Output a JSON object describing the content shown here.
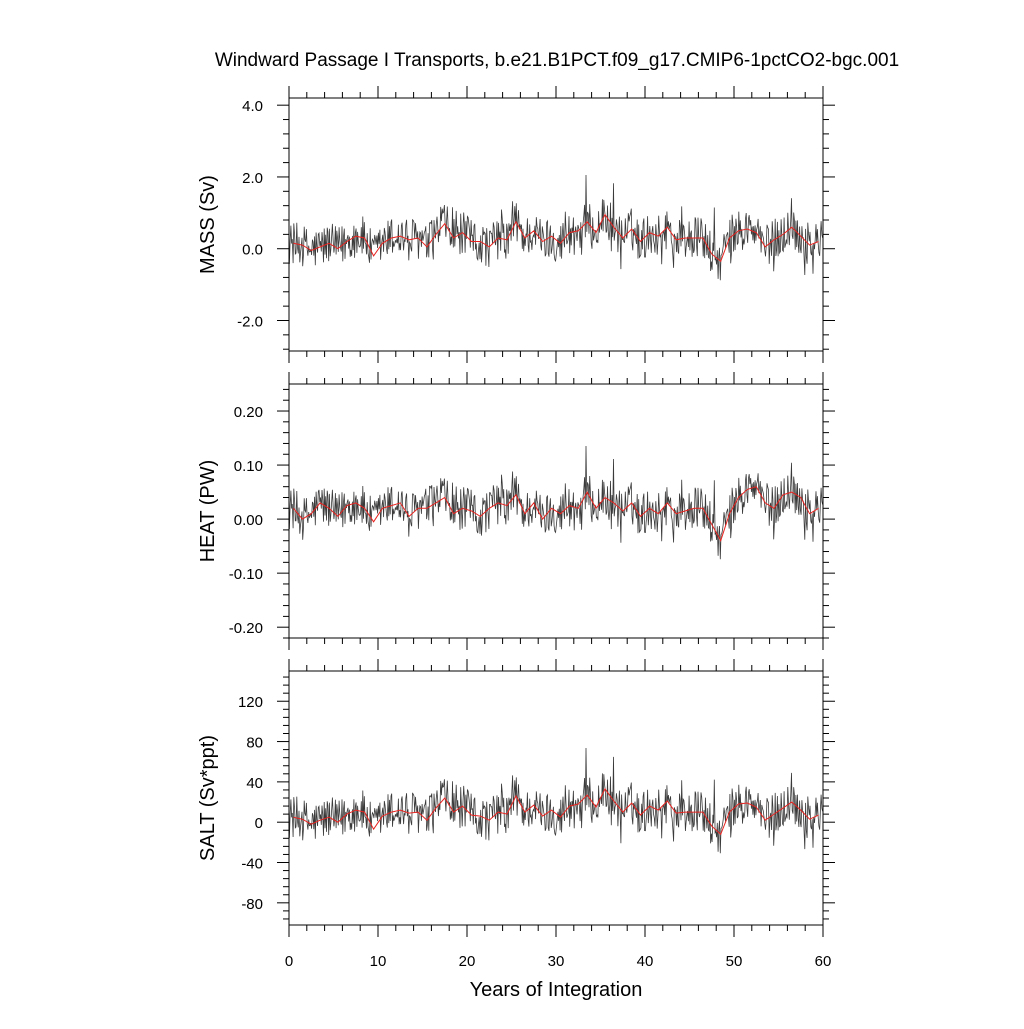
{
  "chart_data": {
    "type": "line",
    "title": "Windward Passage I Transports, b.e21.B1PCT.f09_g17.CMIP6-1pctCO2-bgc.001",
    "xlabel": "Years of Integration",
    "xlim": [
      0,
      60
    ],
    "x_ticks": [
      0,
      10,
      20,
      30,
      40,
      50,
      60
    ],
    "x_tick_labels": [
      "0",
      "10",
      "20",
      "30",
      "40",
      "50",
      "60"
    ],
    "raw_color": "#3a3a3a",
    "smooth_color": "#e8231f",
    "panels": [
      {
        "ylabel": "MASS (Sv)",
        "ylim": [
          -2.85,
          4.2
        ],
        "y_ticks": [
          -2.0,
          0.0,
          2.0,
          4.0
        ],
        "y_tick_labels": [
          "-2.0",
          "0.0",
          "2.0",
          "4.0"
        ],
        "annual_mean": {
          "x": [
            0.5,
            1.5,
            2.5,
            3.5,
            4.5,
            5.5,
            6.5,
            7.5,
            8.5,
            9.5,
            10.5,
            11.5,
            12.5,
            13.5,
            14.5,
            15.5,
            16.5,
            17.5,
            18.5,
            19.5,
            20.5,
            21.5,
            22.5,
            23.5,
            24.5,
            25.5,
            26.5,
            27.5,
            28.5,
            29.5,
            30.5,
            31.5,
            32.5,
            33.5,
            34.5,
            35.5,
            36.5,
            37.5,
            38.5,
            39.5,
            40.5,
            41.5,
            42.5,
            43.5,
            44.5,
            45.5,
            46.5,
            47.5,
            48.5,
            49.5,
            50.5,
            51.5,
            52.5,
            53.5,
            54.5,
            55.5,
            56.5,
            57.5,
            58.5,
            59.5
          ],
          "y": [
            0.15,
            0.1,
            -0.05,
            0.05,
            0.15,
            0.0,
            0.2,
            0.35,
            0.3,
            -0.2,
            0.15,
            0.3,
            0.35,
            0.25,
            0.3,
            0.05,
            0.4,
            0.7,
            0.3,
            0.45,
            0.2,
            0.2,
            0.05,
            0.3,
            0.25,
            0.75,
            0.3,
            0.5,
            0.2,
            0.35,
            0.15,
            0.45,
            0.5,
            0.75,
            0.45,
            0.95,
            0.6,
            0.3,
            0.55,
            0.2,
            0.45,
            0.35,
            0.6,
            0.25,
            0.3,
            0.3,
            0.3,
            -0.15,
            -0.35,
            0.3,
            0.5,
            0.55,
            0.45,
            0.05,
            0.25,
            0.4,
            0.6,
            0.35,
            0.1,
            0.2
          ]
        }
      },
      {
        "ylabel": "HEAT (PW)",
        "ylim": [
          -0.22,
          0.25
        ],
        "y_ticks": [
          -0.2,
          -0.1,
          0.0,
          0.1,
          0.2
        ],
        "y_tick_labels": [
          "-0.20",
          "-0.10",
          "0.00",
          "0.10",
          "0.20"
        ],
        "annual_mean": {
          "x": [
            0.5,
            1.5,
            2.5,
            3.5,
            4.5,
            5.5,
            6.5,
            7.5,
            8.5,
            9.5,
            10.5,
            11.5,
            12.5,
            13.5,
            14.5,
            15.5,
            16.5,
            17.5,
            18.5,
            19.5,
            20.5,
            21.5,
            22.5,
            23.5,
            24.5,
            25.5,
            26.5,
            27.5,
            28.5,
            29.5,
            30.5,
            31.5,
            32.5,
            33.5,
            34.5,
            35.5,
            36.5,
            37.5,
            38.5,
            39.5,
            40.5,
            41.5,
            42.5,
            43.5,
            44.5,
            45.5,
            46.5,
            47.5,
            48.5,
            49.5,
            50.5,
            51.5,
            52.5,
            53.5,
            54.5,
            55.5,
            56.5,
            57.5,
            58.5,
            59.5
          ],
          "y": [
            0.02,
            0.0,
            0.01,
            0.03,
            0.02,
            0.005,
            0.025,
            0.03,
            0.02,
            -0.005,
            0.02,
            0.025,
            0.03,
            0.005,
            0.02,
            0.02,
            0.03,
            0.04,
            0.01,
            0.02,
            0.015,
            0.005,
            0.02,
            0.03,
            0.025,
            0.045,
            0.01,
            0.03,
            0.0,
            0.02,
            0.01,
            0.025,
            0.02,
            0.05,
            0.02,
            0.04,
            0.03,
            0.015,
            0.03,
            0.005,
            0.02,
            0.01,
            0.03,
            0.01,
            0.015,
            0.02,
            0.02,
            -0.01,
            -0.04,
            0.01,
            0.04,
            0.055,
            0.06,
            0.03,
            0.02,
            0.045,
            0.05,
            0.04,
            0.01,
            0.02
          ]
        }
      },
      {
        "ylabel": "SALT (Sv*ppt)",
        "ylim": [
          -102,
          150
        ],
        "y_ticks": [
          -80,
          -40,
          0,
          40,
          80,
          120
        ],
        "y_tick_labels": [
          "-80",
          "-40",
          "0",
          "40",
          "80",
          "120"
        ],
        "annual_mean": {
          "x": [
            0.5,
            1.5,
            2.5,
            3.5,
            4.5,
            5.5,
            6.5,
            7.5,
            8.5,
            9.5,
            10.5,
            11.5,
            12.5,
            13.5,
            14.5,
            15.5,
            16.5,
            17.5,
            18.5,
            19.5,
            20.5,
            21.5,
            22.5,
            23.5,
            24.5,
            25.5,
            26.5,
            27.5,
            28.5,
            29.5,
            30.5,
            31.5,
            32.5,
            33.5,
            34.5,
            35.5,
            36.5,
            37.5,
            38.5,
            39.5,
            40.5,
            41.5,
            42.5,
            43.5,
            44.5,
            45.5,
            46.5,
            47.5,
            48.5,
            49.5,
            50.5,
            51.5,
            52.5,
            53.5,
            54.5,
            55.5,
            56.5,
            57.5,
            58.5,
            59.5
          ],
          "y": [
            5,
            3,
            -2,
            2,
            5,
            0,
            8,
            12,
            10,
            -7,
            6,
            10,
            12,
            9,
            10,
            2,
            14,
            24,
            10,
            16,
            7,
            6,
            2,
            10,
            8,
            26,
            10,
            17,
            6,
            12,
            5,
            16,
            18,
            27,
            15,
            33,
            21,
            10,
            19,
            7,
            16,
            12,
            21,
            9,
            10,
            10,
            10,
            -4,
            -12,
            10,
            18,
            19,
            15,
            2,
            8,
            14,
            20,
            12,
            3,
            7
          ]
        }
      }
    ]
  }
}
